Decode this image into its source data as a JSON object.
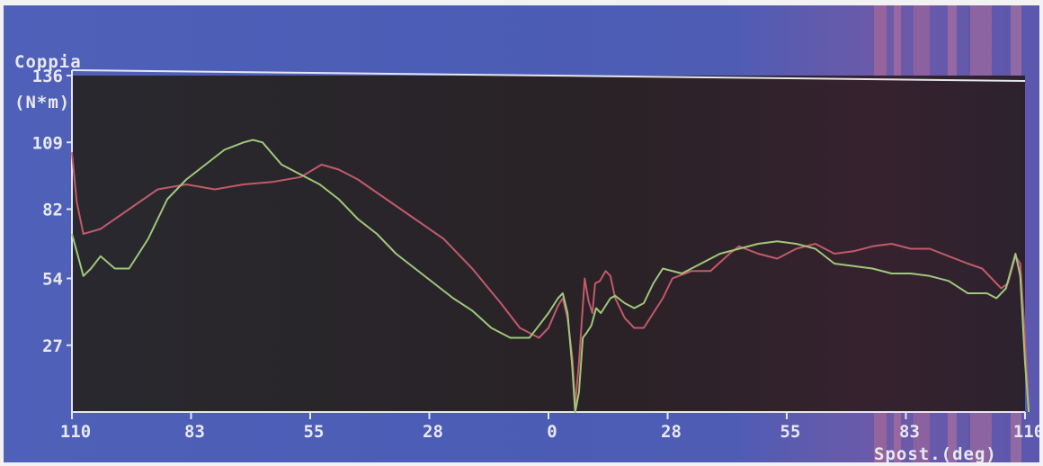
{
  "chart_data": {
    "type": "line",
    "ylabel": "Coppia",
    "yunit": "(N*m)",
    "xlabel": "Spost.(deg)",
    "ylim": [
      0,
      136
    ],
    "yticks": [
      "136",
      "109",
      "82",
      "54",
      "27"
    ],
    "xticks": [
      "110",
      "83",
      "55",
      "28",
      "0",
      "28",
      "55",
      "83",
      "110"
    ],
    "grid": false,
    "series": [
      {
        "color": "#c25a6a",
        "values": [
          [
            0,
            105
          ],
          [
            0.005,
            85
          ],
          [
            0.012,
            72
          ],
          [
            0.03,
            74
          ],
          [
            0.06,
            82
          ],
          [
            0.09,
            90
          ],
          [
            0.12,
            92
          ],
          [
            0.15,
            90
          ],
          [
            0.18,
            92
          ],
          [
            0.21,
            93
          ],
          [
            0.24,
            95
          ],
          [
            0.262,
            100
          ],
          [
            0.28,
            98
          ],
          [
            0.3,
            94
          ],
          [
            0.33,
            86
          ],
          [
            0.36,
            78
          ],
          [
            0.39,
            70
          ],
          [
            0.42,
            58
          ],
          [
            0.45,
            44
          ],
          [
            0.47,
            34
          ],
          [
            0.49,
            30
          ],
          [
            0.5,
            34
          ],
          [
            0.51,
            43
          ],
          [
            0.515,
            46
          ],
          [
            0.52,
            38
          ],
          [
            0.525,
            22
          ],
          [
            0.528,
            3
          ],
          [
            0.532,
            20
          ],
          [
            0.538,
            54
          ],
          [
            0.542,
            45
          ],
          [
            0.546,
            40
          ],
          [
            0.549,
            52
          ],
          [
            0.554,
            53
          ],
          [
            0.56,
            57
          ],
          [
            0.565,
            55
          ],
          [
            0.57,
            46
          ],
          [
            0.58,
            38
          ],
          [
            0.59,
            34
          ],
          [
            0.6,
            34
          ],
          [
            0.61,
            40
          ],
          [
            0.62,
            46
          ],
          [
            0.63,
            54
          ],
          [
            0.65,
            57
          ],
          [
            0.67,
            57
          ],
          [
            0.69,
            64
          ],
          [
            0.7,
            67
          ],
          [
            0.72,
            64
          ],
          [
            0.74,
            62
          ],
          [
            0.76,
            66
          ],
          [
            0.78,
            68
          ],
          [
            0.8,
            64
          ],
          [
            0.82,
            65
          ],
          [
            0.84,
            67
          ],
          [
            0.86,
            68
          ],
          [
            0.88,
            66
          ],
          [
            0.9,
            66
          ],
          [
            0.92,
            63
          ],
          [
            0.94,
            60
          ],
          [
            0.955,
            58
          ],
          [
            0.965,
            54
          ],
          [
            0.975,
            50
          ],
          [
            0.982,
            52
          ],
          [
            0.99,
            63
          ],
          [
            0.995,
            60
          ],
          [
            1.0,
            30
          ],
          [
            1.004,
            0
          ]
        ]
      },
      {
        "color": "#9fc87a",
        "values": [
          [
            0,
            72
          ],
          [
            0.005,
            65
          ],
          [
            0.012,
            55
          ],
          [
            0.02,
            58
          ],
          [
            0.03,
            63
          ],
          [
            0.045,
            58
          ],
          [
            0.06,
            58
          ],
          [
            0.08,
            70
          ],
          [
            0.1,
            86
          ],
          [
            0.12,
            94
          ],
          [
            0.14,
            100
          ],
          [
            0.16,
            106
          ],
          [
            0.18,
            109
          ],
          [
            0.19,
            110
          ],
          [
            0.2,
            109
          ],
          [
            0.22,
            100
          ],
          [
            0.24,
            96
          ],
          [
            0.26,
            92
          ],
          [
            0.28,
            86
          ],
          [
            0.3,
            78
          ],
          [
            0.32,
            72
          ],
          [
            0.34,
            64
          ],
          [
            0.36,
            58
          ],
          [
            0.38,
            52
          ],
          [
            0.4,
            46
          ],
          [
            0.42,
            41
          ],
          [
            0.44,
            34
          ],
          [
            0.46,
            30
          ],
          [
            0.48,
            30
          ],
          [
            0.49,
            35
          ],
          [
            0.5,
            40
          ],
          [
            0.51,
            46
          ],
          [
            0.515,
            48
          ],
          [
            0.52,
            40
          ],
          [
            0.525,
            18
          ],
          [
            0.528,
            0
          ],
          [
            0.532,
            8
          ],
          [
            0.536,
            30
          ],
          [
            0.54,
            32
          ],
          [
            0.545,
            35
          ],
          [
            0.55,
            42
          ],
          [
            0.555,
            40
          ],
          [
            0.565,
            46
          ],
          [
            0.57,
            47
          ],
          [
            0.58,
            44
          ],
          [
            0.59,
            42
          ],
          [
            0.6,
            44
          ],
          [
            0.61,
            52
          ],
          [
            0.62,
            58
          ],
          [
            0.64,
            56
          ],
          [
            0.66,
            60
          ],
          [
            0.68,
            64
          ],
          [
            0.7,
            66
          ],
          [
            0.72,
            68
          ],
          [
            0.74,
            69
          ],
          [
            0.76,
            68
          ],
          [
            0.78,
            66
          ],
          [
            0.8,
            60
          ],
          [
            0.82,
            59
          ],
          [
            0.84,
            58
          ],
          [
            0.86,
            56
          ],
          [
            0.88,
            56
          ],
          [
            0.9,
            55
          ],
          [
            0.92,
            53
          ],
          [
            0.94,
            48
          ],
          [
            0.96,
            48
          ],
          [
            0.97,
            46
          ],
          [
            0.98,
            50
          ],
          [
            0.99,
            64
          ],
          [
            0.995,
            55
          ],
          [
            1.0,
            20
          ],
          [
            1.004,
            0
          ]
        ]
      }
    ]
  }
}
